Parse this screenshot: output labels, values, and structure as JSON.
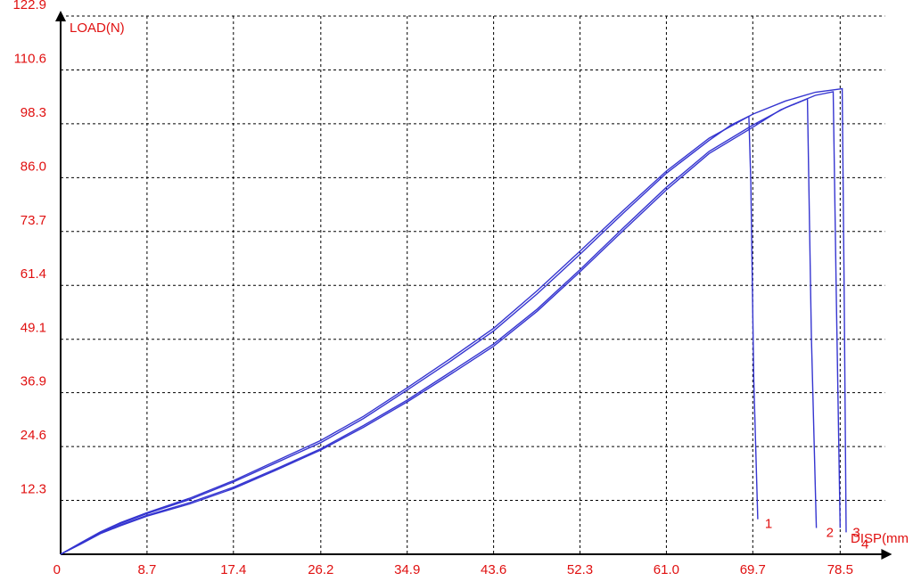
{
  "chart_data": {
    "type": "line",
    "y_label": "LOAD(N)",
    "x_label": "DISP(mm",
    "xlim": [
      0,
      83
    ],
    "ylim": [
      0,
      122.9
    ],
    "xticks": [
      0,
      8.7,
      17.4,
      26.2,
      34.9,
      43.6,
      52.3,
      {
        "value": 61,
        "label": "61.0"
      },
      69.7,
      78.5
    ],
    "yticks": [
      12.3,
      24.6,
      36.9,
      49.1,
      61.4,
      73.7,
      {
        "value": 86,
        "label": "86.0"
      },
      98.3,
      110.6,
      122.9
    ],
    "grid": true,
    "series": [
      {
        "name": "1",
        "color": "#3535d0",
        "x": [
          0,
          2,
          4,
          6,
          8.7,
          13,
          17.4,
          21.8,
          26.2,
          30.5,
          34.9,
          39.2,
          43.6,
          48,
          52.3,
          56.7,
          61,
          65.3,
          67.5,
          69.3,
          69.5,
          69.8,
          70.2
        ],
        "values": [
          0,
          2.5,
          5,
          7,
          9.3,
          12.5,
          16.5,
          21,
          25.5,
          31,
          37.5,
          44,
          51,
          59.5,
          68.5,
          78,
          87,
          94.5,
          98,
          100,
          85,
          40,
          8
        ]
      },
      {
        "name": "2",
        "color": "#3535d0",
        "x": [
          0,
          2,
          4,
          6,
          8.7,
          13,
          17.4,
          21.8,
          26.2,
          30.5,
          34.9,
          39.2,
          43.6,
          48,
          52.3,
          56.7,
          61,
          65.3,
          69.7,
          72.5,
          75.2,
          75.6,
          76.1
        ],
        "values": [
          0,
          2.3,
          4.7,
          6.5,
          8.7,
          11.5,
          15,
          19.3,
          23.8,
          29,
          34.8,
          41,
          47.5,
          55.5,
          64.5,
          74,
          83.2,
          91.5,
          97.5,
          101.5,
          104,
          50,
          6
        ]
      },
      {
        "name": "3",
        "color": "#3535d0",
        "x": [
          0,
          2,
          4,
          6,
          8.7,
          13,
          17.4,
          21.8,
          26.2,
          30.5,
          34.9,
          39.2,
          43.6,
          48,
          52.3,
          56.7,
          61,
          65.3,
          69.7,
          73,
          76,
          77.8,
          78.1,
          78.5
        ],
        "values": [
          0,
          2.4,
          4.8,
          6.7,
          8.9,
          11.8,
          15.3,
          19.6,
          24.1,
          29.4,
          35.2,
          41.5,
          48,
          56,
          65,
          74.6,
          83.8,
          92,
          98,
          102,
          104.8,
          105.6,
          60,
          6
        ]
      },
      {
        "name": "4",
        "color": "#3535d0",
        "x": [
          0,
          2,
          4,
          6,
          8.7,
          13,
          17.4,
          21.8,
          26.2,
          30.5,
          34.9,
          39.2,
          43.6,
          48,
          52.3,
          56.7,
          61,
          65.3,
          69.7,
          73,
          76,
          78.7,
          78.9,
          79.1
        ],
        "values": [
          0,
          2.6,
          5.1,
          7.2,
          9.5,
          12.8,
          16.8,
          21.4,
          26,
          31.5,
          38,
          44.6,
          51.6,
          60.2,
          69.2,
          78.6,
          87.5,
          95,
          100.5,
          103.5,
          105.5,
          106.3,
          60,
          5
        ]
      }
    ]
  }
}
